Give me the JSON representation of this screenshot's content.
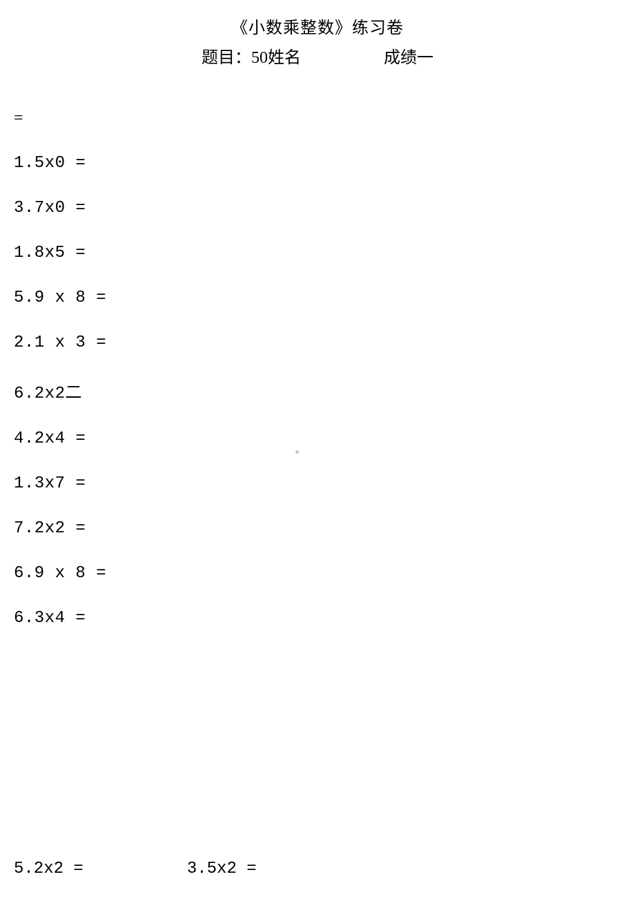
{
  "header": {
    "title": "《小数乘整数》练习卷",
    "sub_left": "题目：50姓名",
    "sub_right": "成绩一"
  },
  "first_eq": "=",
  "problems": [
    "1.5x0 =",
    "3.7x0 =",
    "1.8x5 =",
    "5.9 x 8 =",
    "2.1 x 3 =",
    "6.2x2二",
    "4.2x4 =",
    "1.3x7 =",
    "7.2x2 =",
    "6.9 x 8 =",
    "6.3x4 ="
  ],
  "watermark": "■",
  "bottom": {
    "left": "5.2x2 =",
    "right": "3.5x2 ="
  },
  "colors": {
    "text": "#000000",
    "background": "#ffffff",
    "watermark": "#bbbbbb"
  },
  "fonts": {
    "title_size": 24,
    "problem_size": 24
  }
}
